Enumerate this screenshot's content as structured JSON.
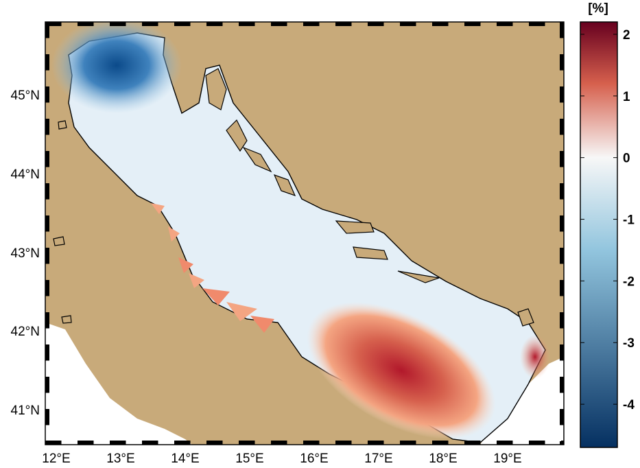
{
  "map": {
    "lat_labels": [
      "45°N",
      "44°N",
      "43°N",
      "42°N",
      "41°N"
    ],
    "lon_labels": [
      "12°E",
      "13°E",
      "14°E",
      "15°E",
      "16°E",
      "17°E",
      "18°E",
      "19°E"
    ],
    "land_color": "#c8aa7a",
    "sea_outside_color": "#ffffff"
  },
  "colorbar": {
    "unit": "[%]",
    "tick_labels": [
      "2",
      "1",
      "0",
      "-1",
      "-2",
      "-3",
      "-4"
    ],
    "range": [
      -4.7,
      2.2
    ],
    "colors": {
      "max": "#67001f",
      "high": "#d6604d",
      "zero": "#f7f7f7",
      "low": "#92c5de",
      "min": "#053061"
    }
  }
}
